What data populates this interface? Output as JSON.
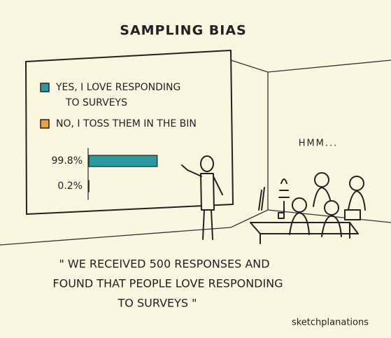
{
  "title": "SAMPLING BIAS",
  "board": {
    "legend": [
      {
        "lines": [
          "YES, I LOVE RESPONDING",
          "TO SURVEYS"
        ],
        "color": "#2b9aa0"
      },
      {
        "lines": [
          "NO, I TOSS THEM IN THE BIN"
        ],
        "color": "#e9a43c"
      }
    ],
    "bars": {
      "values": [
        99.8,
        0.2
      ],
      "value_labels": [
        "99.8%",
        "0.2%"
      ]
    }
  },
  "thought": "HMM...",
  "quote": [
    "\" WE RECEIVED 500 RESPONSES AND",
    "FOUND THAT PEOPLE LOVE RESPONDING",
    "TO SURVEYS \""
  ],
  "credit": "sketchplanations"
}
